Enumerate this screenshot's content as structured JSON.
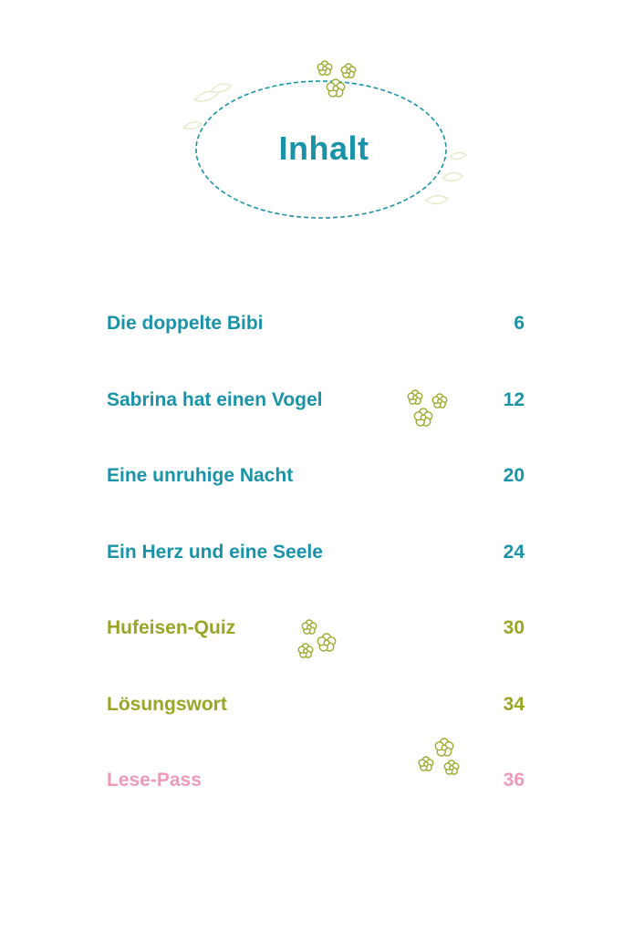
{
  "page": {
    "title": "Inhalt",
    "colors": {
      "teal": "#1a93a8",
      "green": "#9aa526",
      "pink": "#ee9ab8",
      "flower": "#9bab2e",
      "leaf_faint": "#e8eccf"
    }
  },
  "toc": {
    "entries": [
      {
        "title": "Die doppelte Bibi",
        "page": "6",
        "color": "teal"
      },
      {
        "title": "Sabrina hat einen Vogel",
        "page": "12",
        "color": "teal"
      },
      {
        "title": "Eine unruhige Nacht",
        "page": "20",
        "color": "teal"
      },
      {
        "title": "Ein Herz und eine Seele",
        "page": "24",
        "color": "teal"
      },
      {
        "title": "Hufeisen-Quiz",
        "page": "30",
        "color": "green"
      },
      {
        "title": "Lösungswort",
        "page": "34",
        "color": "green"
      },
      {
        "title": "Lese-Pass",
        "page": "36",
        "color": "pink"
      }
    ]
  }
}
